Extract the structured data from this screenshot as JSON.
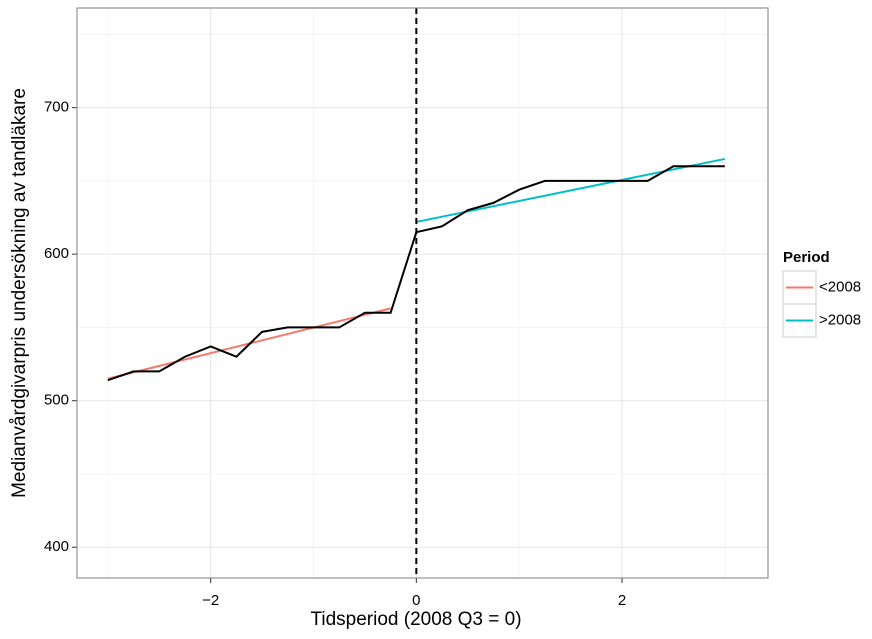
{
  "chart_data": {
    "type": "line",
    "x_label": "Tidsperiod (2008 Q3 = 0)",
    "y_label": "Medianvårdgivarpris undersökning av tandläkare",
    "x": [
      -3,
      -2.75,
      -2.5,
      -2.25,
      -2,
      -1.75,
      -1.5,
      -1.25,
      -1,
      -0.75,
      -0.5,
      -0.25,
      0,
      0.25,
      0.5,
      0.75,
      1,
      1.25,
      1.5,
      1.75,
      2,
      2.25,
      2.5,
      2.75,
      3
    ],
    "values": [
      514,
      520,
      520,
      530,
      537,
      530,
      547,
      550,
      550,
      550,
      560,
      560,
      615,
      619,
      630,
      635,
      644,
      650,
      650,
      650,
      650,
      650,
      660,
      660,
      660
    ],
    "color": "#000000",
    "series": [
      {
        "name": "<2008",
        "color": "#F8766D",
        "x": [
          -3,
          -0.25
        ],
        "values": [
          515,
          563
        ]
      },
      {
        "name": ">2008",
        "color": "#00BFC4",
        "x": [
          0,
          3
        ],
        "values": [
          622,
          665
        ]
      }
    ],
    "legend_title": "Period",
    "vline": 0,
    "xlim": [
      -3.3,
      3.42
    ],
    "ylim": [
      379,
      768
    ],
    "xticks": [
      {
        "value": -2,
        "label": "−2"
      },
      0,
      2
    ],
    "yticks": [
      400,
      500,
      600,
      700
    ],
    "x_minor": [
      -3,
      -1,
      1,
      3
    ],
    "y_minor": [
      450,
      550,
      650,
      750
    ],
    "grid": true
  }
}
